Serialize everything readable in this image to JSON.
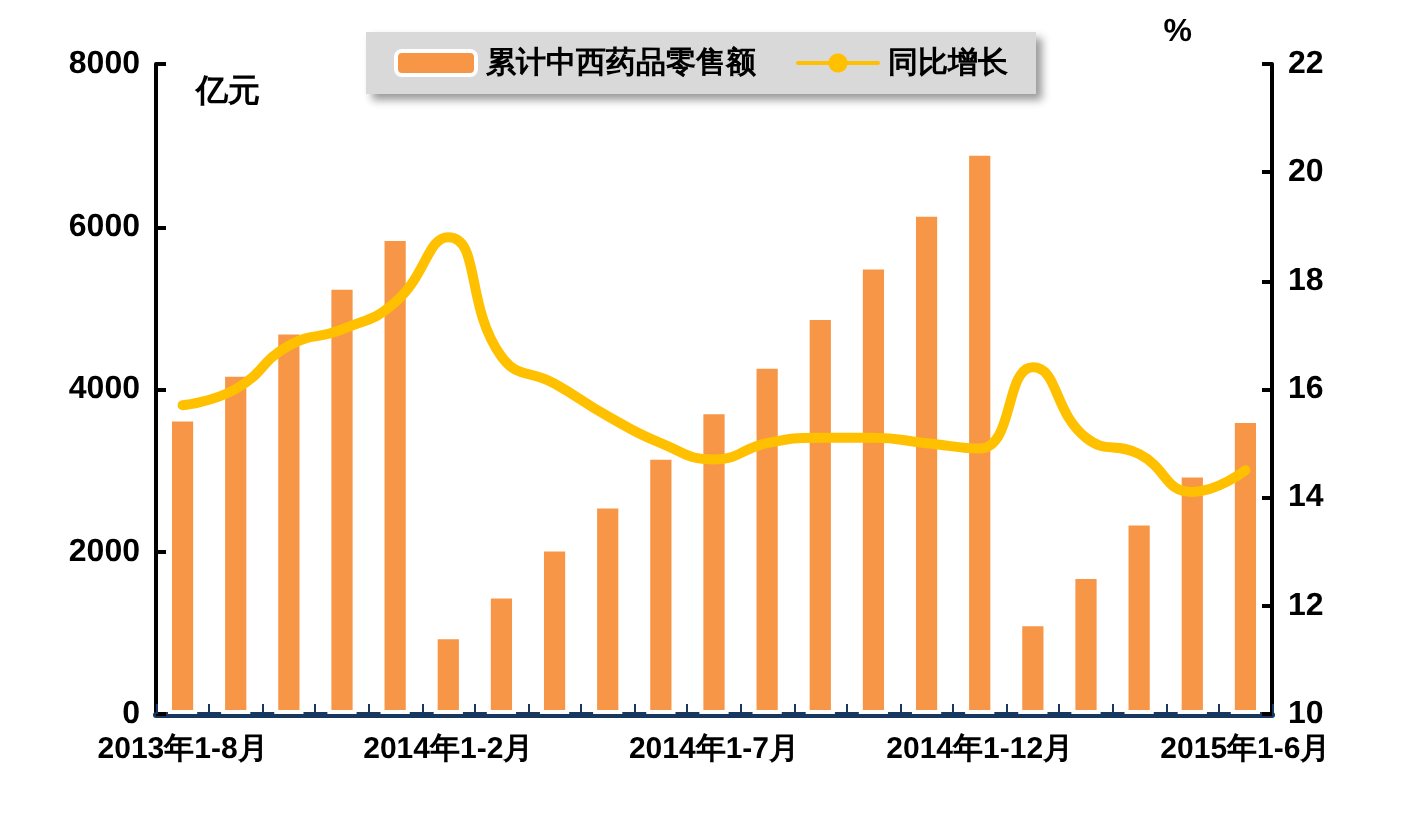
{
  "chart_data": {
    "type": "bar",
    "ylabel": "亿元",
    "y2label": "%",
    "categories": [
      "2013年1-8月",
      null,
      null,
      null,
      null,
      "2014年1-2月",
      null,
      null,
      null,
      null,
      "2014年1-7月",
      null,
      null,
      null,
      null,
      "2014年1-12月",
      null,
      null,
      null,
      null,
      "2015年1-6月"
    ],
    "series": [
      {
        "name": "累计中西药品零售额",
        "color": "#f79646",
        "values": [
          3650,
          4200,
          4720,
          5270,
          5870,
          970,
          1470,
          2050,
          2580,
          3180,
          3740,
          4300,
          4900,
          5520,
          6170,
          6920,
          1130,
          1710,
          2370,
          2960,
          3630
        ]
      },
      {
        "name": "同比增长",
        "type": "line",
        "axis": "y2",
        "color": "#ffc000",
        "values": [
          15.7,
          16.0,
          16.8,
          17.1,
          17.6,
          18.8,
          16.6,
          16.1,
          15.5,
          15.0,
          14.7,
          15.0,
          15.1,
          15.1,
          15.0,
          14.9,
          16.4,
          15.1,
          14.8,
          14.1,
          14.5
        ]
      }
    ],
    "ylim": [
      0,
      8000
    ],
    "yticks": [
      0,
      2000,
      4000,
      6000,
      8000
    ],
    "y2lim": [
      10,
      22
    ],
    "y2ticks": [
      10,
      12,
      14,
      16,
      18,
      20,
      22
    ],
    "grid": false,
    "legend": "top",
    "marker": "none",
    "line_style": "solid"
  }
}
